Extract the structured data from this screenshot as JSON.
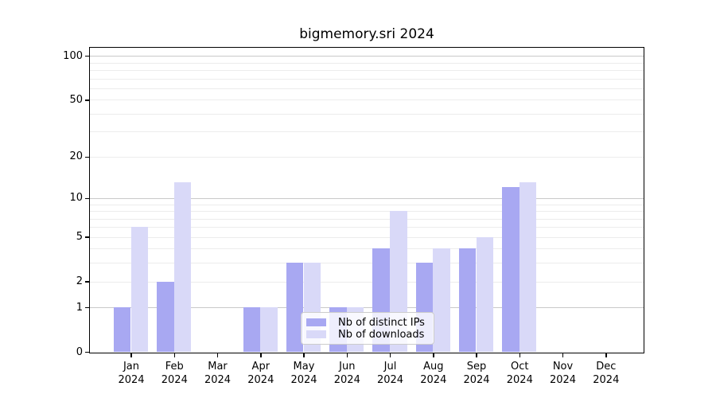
{
  "title": "bigmemory.sri 2024",
  "legend": {
    "ips_label": "Nb of distinct IPs",
    "downloads_label": "Nb of downloads"
  },
  "colors": {
    "ips_bar": "#a8a8f2",
    "downloads_bar": "#d9d9f8",
    "grid_major": "#c9c9c9",
    "grid_minor": "#ececec",
    "spine": "#000000"
  },
  "chart_data": {
    "type": "bar",
    "title": "bigmemory.sri 2024",
    "categories": [
      "Jan",
      "Feb",
      "Mar",
      "Apr",
      "May",
      "Jun",
      "Jul",
      "Aug",
      "Sep",
      "Oct",
      "Nov",
      "Dec"
    ],
    "x_year": "2024",
    "series": [
      {
        "name": "Nb of distinct IPs",
        "color": "#a8a8f2",
        "values": [
          1,
          2,
          0,
          1,
          3,
          1,
          4,
          3,
          4,
          12,
          0,
          0
        ]
      },
      {
        "name": "Nb of downloads",
        "color": "#d9d9f8",
        "values": [
          6,
          13,
          0,
          1,
          3,
          1,
          8,
          4,
          5,
          13,
          0,
          0
        ]
      }
    ],
    "xlabel": "",
    "ylabel": "",
    "y_scale": "log10(1+x)",
    "ylim": [
      0,
      116
    ],
    "y_tick_values": [
      0,
      1,
      2,
      5,
      10,
      20,
      50,
      100
    ],
    "y_tick_labels": [
      "0",
      "1",
      "2",
      "5",
      "10",
      "20",
      "50",
      "100"
    ],
    "y_gridlines_major": [
      1,
      10,
      100
    ],
    "y_gridlines_minor": [
      2,
      3,
      4,
      5,
      6,
      7,
      8,
      9,
      20,
      30,
      40,
      50,
      60,
      70,
      80,
      90
    ],
    "grid": "on",
    "legend_position": "inside-bottom-center"
  }
}
